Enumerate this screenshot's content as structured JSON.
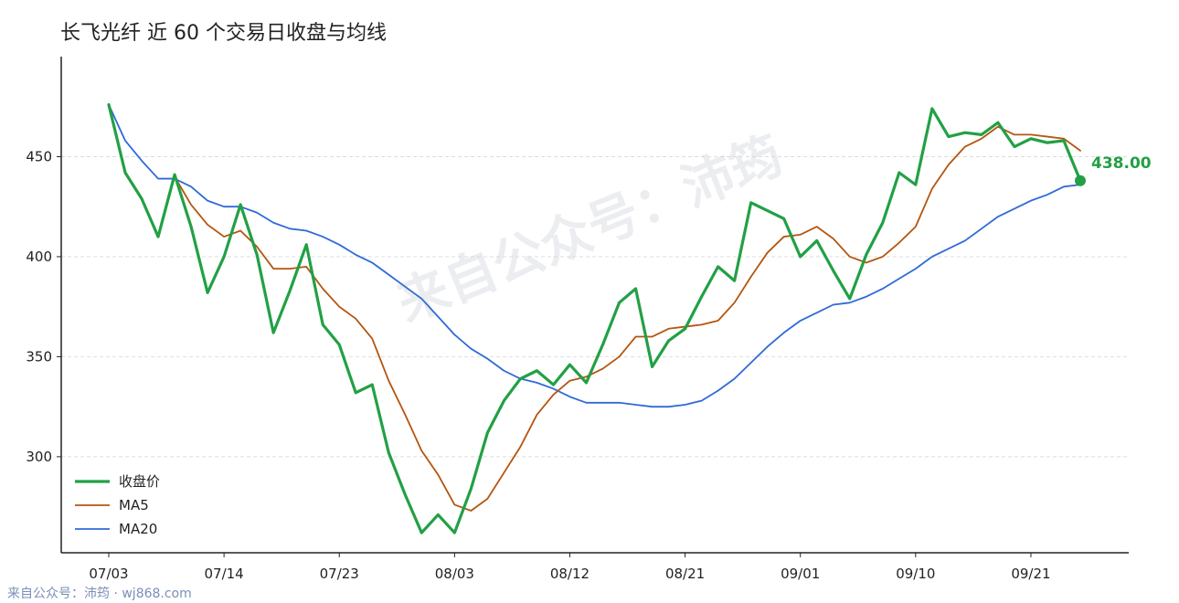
{
  "title": "长飞光纤 近 60 个交易日收盘与均线",
  "footer": "来自公众号：沛筠 · wj868.com",
  "watermark": "来自公众号：沛筠",
  "colors": {
    "close": "#22a045",
    "ma5": "#b5550f",
    "ma20": "#2f6ad8",
    "axis": "#222222",
    "grid": "#dddddd"
  },
  "chart_data": {
    "type": "line",
    "title": "长飞光纤 近 60 个交易日收盘与均线",
    "xlabel": "",
    "ylabel": "",
    "ylim": [
      252,
      500
    ],
    "yticks": [
      300,
      350,
      400,
      450
    ],
    "xtick_labels": [
      "07/03",
      "07/14",
      "07/23",
      "08/03",
      "08/12",
      "08/21",
      "09/01",
      "09/10",
      "09/21"
    ],
    "xtick_index": [
      0,
      7,
      14,
      21,
      28,
      35,
      42,
      49,
      56
    ],
    "grid": "horizontal",
    "legend": "bottom-left",
    "last_value_label": "438.00",
    "series": [
      {
        "name": "收盘价",
        "values": [
          476,
          442,
          429,
          410,
          441,
          415,
          382,
          400,
          426,
          401,
          362,
          383,
          406,
          366,
          356,
          332,
          336,
          302,
          281,
          262,
          271,
          262,
          284,
          312,
          328,
          339,
          343,
          336,
          346,
          337,
          356,
          377,
          384,
          345,
          358,
          364,
          380,
          395,
          388,
          427,
          423,
          419,
          400,
          408,
          393,
          379,
          401,
          417,
          442,
          436,
          474,
          460,
          462,
          461,
          467,
          455,
          459,
          457,
          458,
          438
        ]
      },
      {
        "name": "MA5",
        "values": [
          476,
          442,
          429,
          410,
          440,
          426,
          416,
          410,
          413,
          405,
          394,
          394,
          395,
          384,
          375,
          369,
          359,
          338,
          321,
          303,
          291,
          276,
          273,
          279,
          292,
          305,
          321,
          331,
          338,
          340,
          344,
          350,
          360,
          360,
          364,
          365,
          366,
          368,
          377,
          390,
          402,
          410,
          411,
          415,
          409,
          400,
          397,
          400,
          407,
          415,
          434,
          446,
          455,
          459,
          465,
          461,
          461,
          460,
          459,
          453
        ]
      },
      {
        "name": "MA20",
        "values": [
          476,
          458,
          448,
          439,
          439,
          435,
          428,
          425,
          425,
          422,
          417,
          414,
          413,
          410,
          406,
          401,
          397,
          391,
          385,
          379,
          370,
          361,
          354,
          349,
          343,
          339,
          337,
          334,
          330,
          327,
          327,
          327,
          326,
          325,
          325,
          326,
          328,
          333,
          339,
          347,
          355,
          362,
          368,
          372,
          376,
          377,
          380,
          384,
          389,
          394,
          400,
          404,
          408,
          414,
          420,
          424,
          428,
          431,
          435,
          436
        ]
      }
    ]
  }
}
